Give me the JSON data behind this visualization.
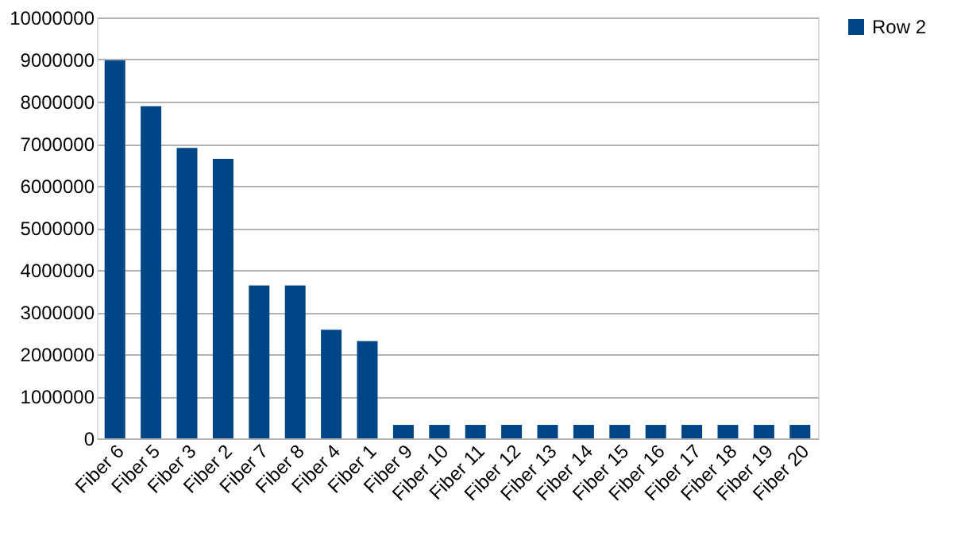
{
  "chart_data": {
    "type": "bar",
    "categories": [
      "Fiber 6",
      "Fiber 5",
      "Fiber 3",
      "Fiber 2",
      "Fiber 7",
      "Fiber 8",
      "Fiber 4",
      "Fiber 1",
      "Fiber 9",
      "Fiber 10",
      "Fiber 11",
      "Fiber 12",
      "Fiber 13",
      "Fiber 14",
      "Fiber 15",
      "Fiber 16",
      "Fiber 17",
      "Fiber 18",
      "Fiber 19",
      "Fiber 20"
    ],
    "series": [
      {
        "name": "Row 2",
        "color": "#004586",
        "values": [
          8980000,
          7890000,
          6900000,
          6640000,
          3630000,
          3630000,
          2580000,
          2310000,
          320000,
          320000,
          320000,
          320000,
          320000,
          320000,
          320000,
          320000,
          320000,
          320000,
          320000,
          320000
        ]
      }
    ],
    "ylim": [
      0,
      10000000
    ],
    "yticks": [
      0,
      1000000,
      2000000,
      3000000,
      4000000,
      5000000,
      6000000,
      7000000,
      8000000,
      9000000,
      10000000
    ],
    "grid": "y",
    "legend": "right"
  }
}
